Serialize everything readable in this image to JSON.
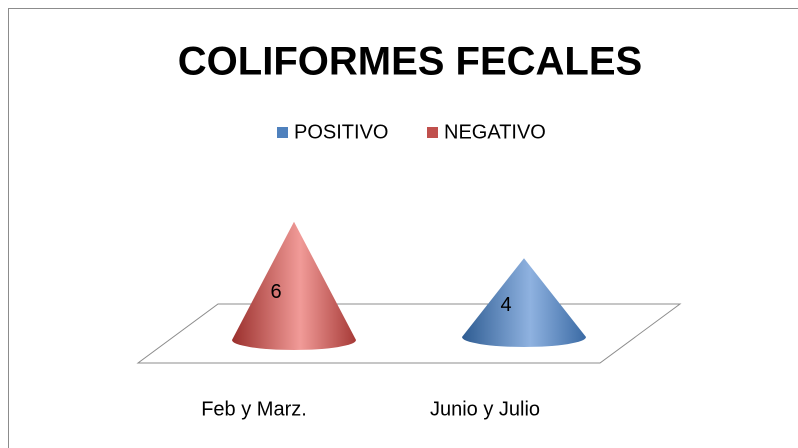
{
  "chart_data": {
    "type": "cone3d",
    "title": "COLIFORMES FECALES",
    "categories": [
      "Feb y Marz.",
      "Junio y Julio"
    ],
    "series": [
      {
        "name": "POSITIVO",
        "color": "#4f81bd",
        "values": [
          null,
          4
        ]
      },
      {
        "name": "NEGATIVO",
        "color": "#c0504d",
        "values": [
          6,
          null
        ]
      }
    ],
    "legend": "top"
  }
}
